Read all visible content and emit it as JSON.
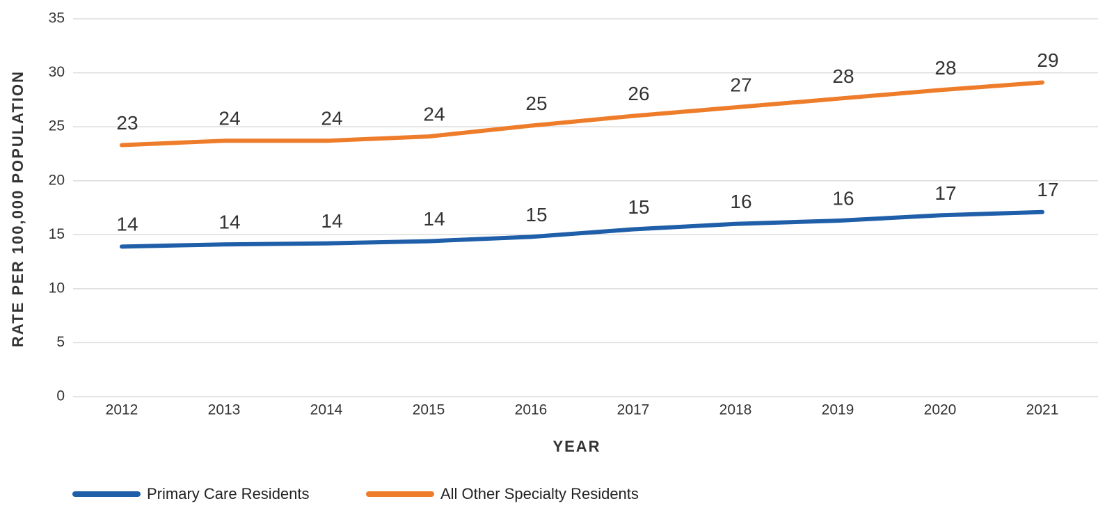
{
  "chart_data": {
    "type": "line",
    "categories": [
      "2012",
      "2013",
      "2014",
      "2015",
      "2016",
      "2017",
      "2018",
      "2019",
      "2020",
      "2021"
    ],
    "series": [
      {
        "name": "Primary Care Residents",
        "color": "#1f5ea8",
        "values": [
          13.9,
          14.1,
          14.2,
          14.4,
          14.8,
          15.5,
          16.0,
          16.3,
          16.8,
          17.1
        ],
        "value_labels": [
          "14",
          "14",
          "14",
          "14",
          "15",
          "15",
          "16",
          "16",
          "17",
          "17"
        ]
      },
      {
        "name": "All Other Specialty Residents",
        "color": "#ee7d2b",
        "values": [
          23.3,
          23.7,
          23.7,
          24.1,
          25.1,
          26.0,
          26.8,
          27.6,
          28.4,
          29.1
        ],
        "value_labels": [
          "23",
          "24",
          "24",
          "24",
          "25",
          "26",
          "27",
          "28",
          "28",
          "29"
        ]
      }
    ],
    "xlabel": "YEAR",
    "ylabel": "RATE PER 100,000 POPULATION",
    "ylim": [
      0,
      35
    ],
    "yticks": [
      0,
      5,
      10,
      15,
      20,
      25,
      30,
      35
    ],
    "grid": true,
    "legend": "bottom"
  }
}
